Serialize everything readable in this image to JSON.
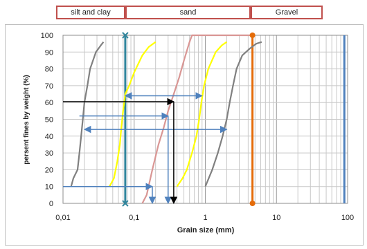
{
  "soil_classes": [
    {
      "label": "silt and clay"
    },
    {
      "label": "sand"
    },
    {
      "label": "Gravel"
    }
  ],
  "chart_data": {
    "type": "line",
    "xscale": "log",
    "xlim": [
      0.01,
      100
    ],
    "ylim": [
      0,
      100
    ],
    "grid": true,
    "xlabel": "Grain size  (mm)",
    "ylabel": "persent fines by weight  (%)",
    "x_tick_labels": [
      "0,01",
      "0,1",
      "1",
      "10",
      "100"
    ],
    "y_tick_labels": [
      "0",
      "10",
      "20",
      "30",
      "40",
      "50",
      "60",
      "70",
      "80",
      "90",
      "100"
    ],
    "colors": {
      "grey": "#808080",
      "yellow": "#ffff00",
      "pink": "#d99694",
      "orange": "#e46c0a",
      "blue_line": "#4f81bd",
      "arrow": "#4f81bd",
      "teal": "#31859c",
      "black": "#000000",
      "frame": "#c0504d"
    },
    "series": [
      {
        "color": "grey",
        "points": [
          [
            0.013,
            10
          ],
          [
            0.014,
            15
          ],
          [
            0.016,
            20
          ],
          [
            0.017,
            30
          ],
          [
            0.018,
            40
          ],
          [
            0.019,
            50
          ],
          [
            0.02,
            60
          ],
          [
            0.022,
            70
          ],
          [
            0.024,
            80
          ],
          [
            0.029,
            90
          ],
          [
            0.034,
            94
          ],
          [
            0.037,
            96
          ]
        ]
      },
      {
        "color": "yellow",
        "points": [
          [
            0.045,
            10
          ],
          [
            0.052,
            15
          ],
          [
            0.058,
            25
          ],
          [
            0.063,
            35
          ],
          [
            0.066,
            45
          ],
          [
            0.07,
            55
          ],
          [
            0.075,
            65
          ],
          [
            0.085,
            70
          ],
          [
            0.1,
            78
          ],
          [
            0.13,
            88
          ],
          [
            0.16,
            93
          ],
          [
            0.2,
            96
          ]
        ]
      },
      {
        "color": "pink",
        "points": [
          [
            0.13,
            0
          ],
          [
            0.15,
            5
          ],
          [
            0.18,
            20
          ],
          [
            0.22,
            35
          ],
          [
            0.26,
            45
          ],
          [
            0.3,
            55
          ],
          [
            0.36,
            65
          ],
          [
            0.43,
            75
          ],
          [
            0.5,
            85
          ],
          [
            0.6,
            96
          ],
          [
            0.65,
            100
          ],
          [
            4.6,
            100
          ]
        ]
      },
      {
        "color": "yellow",
        "points": [
          [
            0.4,
            10
          ],
          [
            0.48,
            15
          ],
          [
            0.55,
            20
          ],
          [
            0.65,
            30
          ],
          [
            0.75,
            40
          ],
          [
            0.82,
            50
          ],
          [
            0.88,
            60
          ],
          [
            0.96,
            70
          ],
          [
            1.1,
            80
          ],
          [
            1.4,
            90
          ],
          [
            1.7,
            94
          ],
          [
            2.0,
            96
          ]
        ]
      },
      {
        "color": "grey",
        "points": [
          [
            1.0,
            10
          ],
          [
            1.25,
            20
          ],
          [
            1.5,
            30
          ],
          [
            1.75,
            40
          ],
          [
            2.0,
            50
          ],
          [
            2.2,
            60
          ],
          [
            2.45,
            70
          ],
          [
            2.75,
            80
          ],
          [
            3.3,
            88
          ],
          [
            4.2,
            92
          ],
          [
            5.2,
            95
          ],
          [
            6.2,
            96
          ]
        ]
      }
    ],
    "vertical_lines": [
      {
        "color": "teal",
        "x": 0.075,
        "y_from": 0,
        "y_to": 100
      },
      {
        "color": "orange",
        "x": 4.6,
        "y_from": 0,
        "y_to": 100
      },
      {
        "color": "blue_line",
        "x": 90,
        "y_from": 0,
        "y_to": 100
      }
    ],
    "arrows": [
      {
        "color": "arrow",
        "from": [
          0.075,
          64
        ],
        "to": [
          0.9,
          64
        ],
        "heads": "both"
      },
      {
        "color": "arrow",
        "from": [
          0.017,
          52
        ],
        "to": [
          0.3,
          52
        ],
        "heads": "end"
      },
      {
        "color": "arrow",
        "from": [
          0.02,
          44
        ],
        "to": [
          2.0,
          44
        ],
        "heads": "both"
      },
      {
        "color": "arrow",
        "from": [
          0.01,
          10
        ],
        "to": [
          0.18,
          10
        ],
        "heads": "end"
      },
      {
        "color": "arrow",
        "from": [
          0.18,
          10
        ],
        "to": [
          0.18,
          0
        ],
        "heads": "end"
      },
      {
        "color": "arrow",
        "from": [
          0.3,
          52
        ],
        "to": [
          0.3,
          0
        ],
        "heads": "end"
      },
      {
        "color": "black",
        "from": [
          0.01,
          60.5
        ],
        "to": [
          0.36,
          60.5
        ],
        "heads": "end"
      },
      {
        "color": "black",
        "from": [
          0.36,
          60.5
        ],
        "to": [
          0.36,
          0
        ],
        "heads": "end"
      }
    ],
    "markers": [
      {
        "color": "teal",
        "shape": "x",
        "x": 0.075,
        "y": 100
      },
      {
        "color": "teal",
        "shape": "x",
        "x": 0.075,
        "y": 0
      },
      {
        "color": "orange",
        "shape": "dot",
        "x": 4.6,
        "y": 100
      },
      {
        "color": "orange",
        "shape": "dot",
        "x": 4.6,
        "y": 0
      }
    ]
  }
}
